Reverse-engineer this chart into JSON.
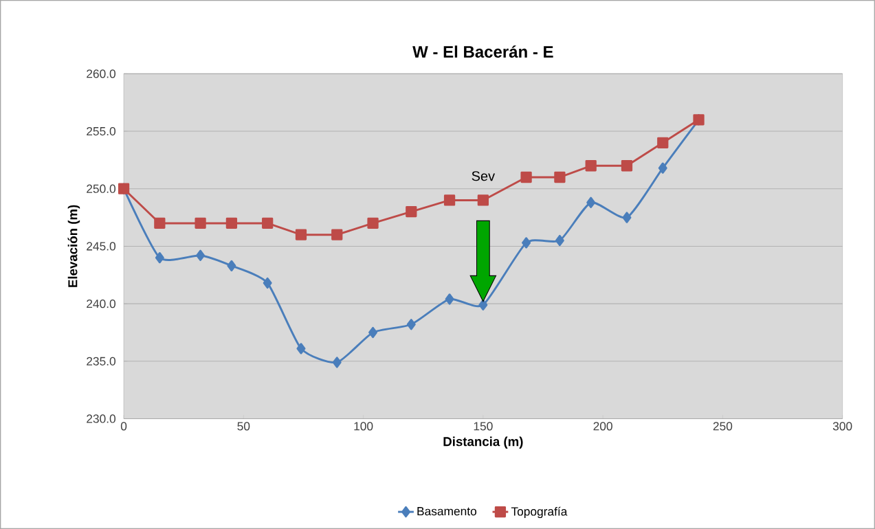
{
  "chart_data": {
    "type": "line",
    "title": "W - El Bacerán - E",
    "xlabel": "Distancia (m)",
    "ylabel": "Elevación (m)",
    "x": [
      0,
      15,
      32,
      45,
      60,
      74,
      89,
      104,
      120,
      136,
      150,
      168,
      182,
      195,
      210,
      225,
      240
    ],
    "series": [
      {
        "name": "Basamento",
        "color": "#4a7ebb",
        "marker": "diamond",
        "values": [
          250,
          244.0,
          244.2,
          243.3,
          241.8,
          236.1,
          234.9,
          237.5,
          238.2,
          240.4,
          239.9,
          245.3,
          245.5,
          248.8,
          247.5,
          251.8,
          256.0
        ]
      },
      {
        "name": "Topografía",
        "color": "#be4b48",
        "marker": "square",
        "values": [
          250,
          247,
          247,
          247,
          247,
          246,
          246,
          247,
          248,
          249,
          249,
          251,
          251,
          252,
          252,
          254,
          256
        ]
      }
    ],
    "xlim": [
      0,
      300
    ],
    "xticks": [
      0,
      50,
      100,
      150,
      200,
      250,
      300
    ],
    "ylim": [
      230,
      260
    ],
    "yticks": [
      {
        "value": 230,
        "label": "230.0"
      },
      {
        "value": 235,
        "label": "235.0"
      },
      {
        "value": 240,
        "label": "240.0"
      },
      {
        "value": 245,
        "label": "245.0"
      },
      {
        "value": 250,
        "label": "250.0"
      },
      {
        "value": 255,
        "label": "255.0"
      },
      {
        "value": 260,
        "label": "260.0"
      }
    ],
    "grid": "y",
    "legend": "bottom",
    "annotations": [
      "Sev"
    ]
  }
}
